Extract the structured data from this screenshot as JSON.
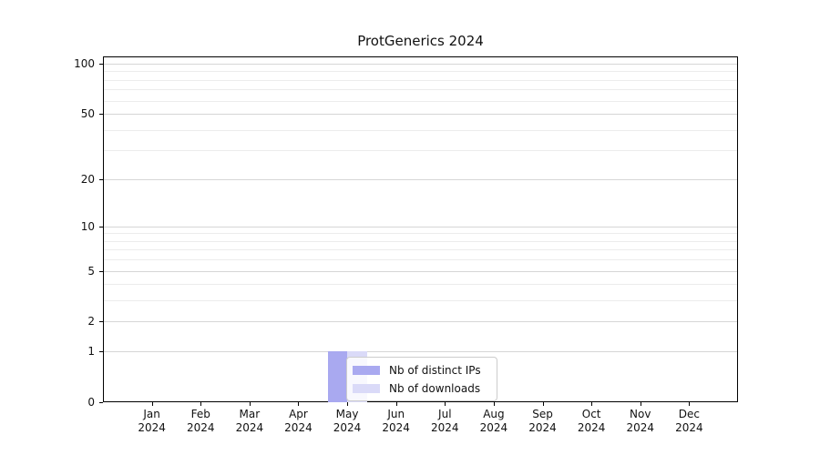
{
  "chart_data": {
    "type": "bar",
    "title": "ProtGenerics 2024",
    "categories": [
      "Jan",
      "Feb",
      "Mar",
      "Apr",
      "May",
      "Jun",
      "Jul",
      "Aug",
      "Sep",
      "Oct",
      "Nov",
      "Dec"
    ],
    "year_label": "2024",
    "series": [
      {
        "name": "Nb of distinct IPs",
        "color": "#a9a9f0",
        "values": [
          0,
          0,
          0,
          0,
          1,
          0,
          0,
          0,
          0,
          0,
          0,
          0
        ]
      },
      {
        "name": "Nb of downloads",
        "color": "#dadaf8",
        "values": [
          0,
          0,
          0,
          0,
          1,
          0,
          0,
          0,
          0,
          0,
          0,
          0
        ]
      }
    ],
    "yscale": "log1p",
    "yticks": [
      0,
      1,
      2,
      5,
      10,
      20,
      50,
      100
    ],
    "minor_gridlines": [
      3,
      4,
      6,
      7,
      8,
      9,
      30,
      40,
      60,
      70,
      80,
      90
    ],
    "ylim": [
      0,
      110.4
    ],
    "xlim": [
      -1,
      12
    ],
    "bar_width": 0.4,
    "grid": "horizontal",
    "legend_position": "lower center",
    "colors": {
      "spine": "#000000",
      "major_grid": "#d6d6d6",
      "minor_grid": "#ececec",
      "text": "#111111"
    }
  }
}
